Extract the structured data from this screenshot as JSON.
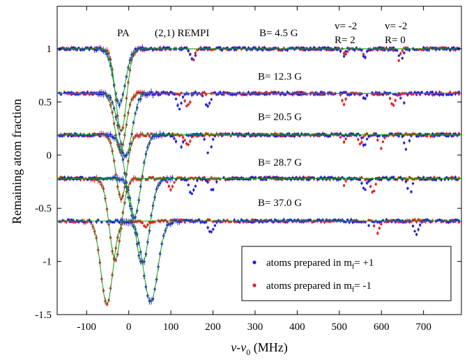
{
  "chart_data": {
    "type": "scatter",
    "xlabel": "ν-ν",
    "xlabel_sub": "0",
    "xlabel_unit": " (MHz)",
    "ylabel": "Remaining atom fraction",
    "xlim": [
      -170,
      790
    ],
    "ylim": [
      -1.5,
      1.4
    ],
    "x_ticks": [
      -100,
      0,
      100,
      200,
      300,
      400,
      500,
      600,
      700
    ],
    "y_ticks": [
      1,
      0.5,
      0,
      -0.5,
      -1,
      -1.5
    ],
    "y_tick_labels": [
      "1",
      "0.5",
      "0",
      "-0.5",
      "-1",
      "-1.5"
    ],
    "grid": false,
    "legend_position": "bottom-right",
    "annotations": {
      "pa": "PA",
      "rempi": "(2,1) REMPI",
      "v_label_1": "v= -2",
      "r_label_1": "R= 2",
      "v_label_2": "v= -2",
      "r_label_2": "R= 0"
    },
    "colors": {
      "plus": "#1f1fe0",
      "minus": "#e01f1f",
      "fit": "#1a9e1a"
    },
    "legend": [
      {
        "prefix": "atoms prepared in m",
        "sub": "f",
        "suffix": "= +1",
        "color": "#1f1fe0"
      },
      {
        "prefix": "atoms prepared in m",
        "sub": "f",
        "suffix": "= -1",
        "color": "#e01f1f"
      }
    ],
    "series": [
      {
        "field": "B= 4.5 G",
        "baseline": 1.0,
        "plus": {
          "main_center": -22,
          "main_depth": 0.52,
          "main_width": 20,
          "extra": [
            [
              152,
              0.1,
              8
            ],
            [
              510,
              0.06,
              6
            ],
            [
              560,
              0.08,
              6
            ],
            [
              647,
              0.1,
              7
            ]
          ]
        },
        "minus": {
          "main_center": -18,
          "main_depth": 0.78,
          "main_width": 18,
          "extra": [
            [
              152,
              0.1,
              8
            ],
            [
              515,
              0.06,
              6
            ],
            [
              560,
              0.07,
              6
            ],
            [
              640,
              0.11,
              7
            ]
          ]
        }
      },
      {
        "field": "B= 12.3 G",
        "baseline": 0.58,
        "plus": {
          "main_center": -8,
          "main_depth": 0.6,
          "main_width": 22,
          "extra": [
            [
              120,
              0.14,
              8
            ],
            [
              188,
              0.12,
              9
            ],
            [
              560,
              0.05,
              6
            ],
            [
              652,
              0.1,
              7
            ]
          ]
        },
        "minus": {
          "main_center": -20,
          "main_depth": 0.55,
          "main_width": 18,
          "extra": [
            [
              140,
              0.12,
              8
            ],
            [
              510,
              0.1,
              6
            ],
            [
              560,
              0.05,
              6
            ],
            [
              628,
              0.12,
              7
            ]
          ]
        }
      },
      {
        "field": "B= 20.5 G",
        "baseline": 0.19,
        "plus": {
          "main_center": 12,
          "main_depth": 0.78,
          "main_width": 24,
          "extra": [
            [
              120,
              0.15,
              9
            ],
            [
              190,
              0.17,
              9
            ],
            [
              560,
              0.1,
              7
            ],
            [
              660,
              0.14,
              7
            ]
          ]
        },
        "minus": {
          "main_center": -18,
          "main_depth": 0.6,
          "main_width": 18,
          "extra": [
            [
              140,
              0.1,
              8
            ],
            [
              510,
              0.06,
              6
            ],
            [
              550,
              0.08,
              6
            ],
            [
              598,
              0.12,
              7
            ]
          ]
        }
      },
      {
        "field": "B= 28.7 G",
        "baseline": -0.22,
        "plus": {
          "main_center": 32,
          "main_depth": 0.8,
          "main_width": 24,
          "extra": [
            [
              150,
              0.15,
              9
            ],
            [
              198,
              0.12,
              9
            ],
            [
              560,
              0.1,
              7
            ],
            [
              668,
              0.16,
              7
            ]
          ]
        },
        "minus": {
          "main_center": -32,
          "main_depth": 0.76,
          "main_width": 20,
          "extra": [
            [
              100,
              0.1,
              9
            ],
            [
              510,
              0.06,
              6
            ],
            [
              580,
              0.14,
              7
            ]
          ]
        }
      },
      {
        "field": "B= 37.0 G",
        "baseline": -0.62,
        "plus": {
          "main_center": 52,
          "main_depth": 0.76,
          "main_width": 24,
          "extra": [
            [
              195,
              0.1,
              9
            ],
            [
              570,
              0.05,
              6
            ],
            [
              683,
              0.13,
              7
            ]
          ]
        },
        "minus": {
          "main_center": -52,
          "main_depth": 0.78,
          "main_width": 20,
          "extra": [
            [
              40,
              0.06,
              9
            ],
            [
              590,
              0.12,
              7
            ]
          ]
        }
      }
    ]
  }
}
